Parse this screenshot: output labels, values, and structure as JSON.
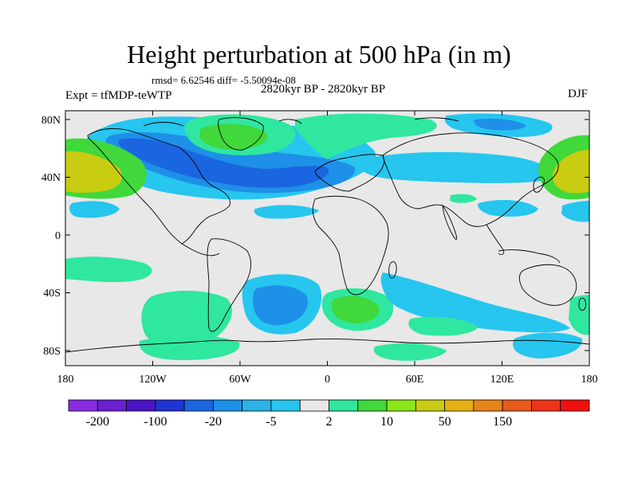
{
  "title": "Height perturbation at 500 hPa (in m)",
  "stats": "rmsd= 6.62546 diff= -5.50094e-08",
  "left_label": "Expt = tfMDP-teWTP",
  "center_label": "2820kyr BP - 2820kyr BP",
  "right_label": "DJF",
  "lon_ticks": [
    "180",
    "120W",
    "60W",
    "0",
    "60E",
    "120E",
    "180"
  ],
  "lat_ticks": [
    "80N",
    "40N",
    "0",
    "40S",
    "80S"
  ],
  "colorbar": {
    "colors": [
      "#8a2be2",
      "#6a1fd1",
      "#4a14c8",
      "#2233d6",
      "#1a66e0",
      "#1e90e8",
      "#2bb3e6",
      "#26c6ef",
      "#e8e8e8",
      "#2fe79f",
      "#40d83a",
      "#8ae61a",
      "#c8cc12",
      "#e6b012",
      "#e8831a",
      "#e85a1a",
      "#ee3418",
      "#f01010"
    ],
    "labels": [
      "-200",
      "-100",
      "-20",
      "-5",
      "2",
      "10",
      "50",
      "150"
    ]
  },
  "field_colors": {
    "ocean_background": "#e8e8e8",
    "deep_blue": "#1a66e0",
    "mid_blue": "#1e90e8",
    "light_blue": "#26c6ef",
    "teal_green": "#2fe79f",
    "green": "#40d83a",
    "yellow": "#c8cc12"
  }
}
